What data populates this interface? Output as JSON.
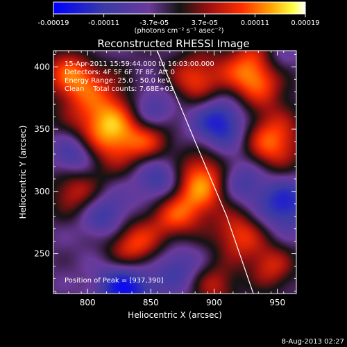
{
  "chart_data": {
    "type": "heatmap",
    "title": "Reconstructed RHESSI Image",
    "xlabel": "Heliocentric X (arcsec)",
    "ylabel": "Heliocentric Y (arcsec)",
    "xlim": [
      773,
      965
    ],
    "ylim": [
      218,
      413
    ],
    "x_ticks": [
      800,
      850,
      900,
      950
    ],
    "y_ticks": [
      250,
      300,
      350,
      400
    ],
    "colorbar": {
      "range": [
        -0.00019,
        0.00019
      ],
      "tick_labels": [
        "-0.00019",
        "-0.00011",
        "-3.7e-05",
        "3.7e-05",
        "0.00011",
        "0.00019"
      ],
      "unit_label": "(photons cm⁻² s⁻¹ asec⁻²)",
      "colormap": [
        "#0000ff",
        "#3a3aa6",
        "#6a3a9a",
        "#141414",
        "#a01010",
        "#ff3000",
        "#ffa000",
        "#ffff40",
        "#ffffff"
      ]
    },
    "annotations": [
      "15-Apr-2011 15:59:44.000 to 16:03:00.000",
      "Detectors: 4F 5F 6F 7F 8F, Att 0",
      "Energy Range: 25.0 - 50.0 keV",
      "Clean    Total counts: 7.68E+03"
    ],
    "peak_label": "Position of Peak = [937,390]",
    "peak_position": [
      937,
      390
    ],
    "limb_curve": [
      [
        855,
        413
      ],
      [
        885,
        340
      ],
      [
        910,
        280
      ],
      [
        931,
        218
      ]
    ],
    "blobs": [
      {
        "x": 818,
        "y": 352,
        "amp": 1.0,
        "r": 22
      },
      {
        "x": 888,
        "y": 308,
        "amp": 0.95,
        "r": 18
      },
      {
        "x": 932,
        "y": 395,
        "amp": 0.9,
        "r": 18
      },
      {
        "x": 945,
        "y": 340,
        "amp": 0.75,
        "r": 17
      },
      {
        "x": 790,
        "y": 395,
        "amp": 0.8,
        "r": 16
      },
      {
        "x": 835,
        "y": 255,
        "amp": 0.75,
        "r": 16
      },
      {
        "x": 868,
        "y": 282,
        "amp": 0.6,
        "r": 15
      },
      {
        "x": 920,
        "y": 265,
        "amp": 0.6,
        "r": 14
      },
      {
        "x": 885,
        "y": 390,
        "amp": 0.6,
        "r": 15
      },
      {
        "x": 790,
        "y": 300,
        "amp": 0.5,
        "r": 14
      },
      {
        "x": 945,
        "y": 240,
        "amp": 0.5,
        "r": 13
      },
      {
        "x": 850,
        "y": 340,
        "amp": 0.45,
        "r": 13
      },
      {
        "x": 900,
        "y": 225,
        "amp": 0.45,
        "r": 13
      },
      {
        "x": 830,
        "y": 225,
        "amp": -0.8,
        "r": 16
      },
      {
        "x": 860,
        "y": 310,
        "amp": -0.7,
        "r": 16
      },
      {
        "x": 848,
        "y": 365,
        "amp": -0.6,
        "r": 14
      },
      {
        "x": 905,
        "y": 355,
        "amp": -0.7,
        "r": 16
      },
      {
        "x": 955,
        "y": 290,
        "amp": -0.6,
        "r": 15
      },
      {
        "x": 790,
        "y": 330,
        "amp": -0.6,
        "r": 13
      },
      {
        "x": 920,
        "y": 310,
        "amp": -0.5,
        "r": 14
      },
      {
        "x": 815,
        "y": 280,
        "amp": -0.5,
        "r": 14
      },
      {
        "x": 870,
        "y": 240,
        "amp": -0.4,
        "r": 14
      },
      {
        "x": 950,
        "y": 405,
        "amp": -0.4,
        "r": 12
      },
      {
        "x": 800,
        "y": 410,
        "amp": -0.3,
        "r": 12
      }
    ]
  },
  "footer": {
    "timestamp": "8-Aug-2013 02:27"
  }
}
